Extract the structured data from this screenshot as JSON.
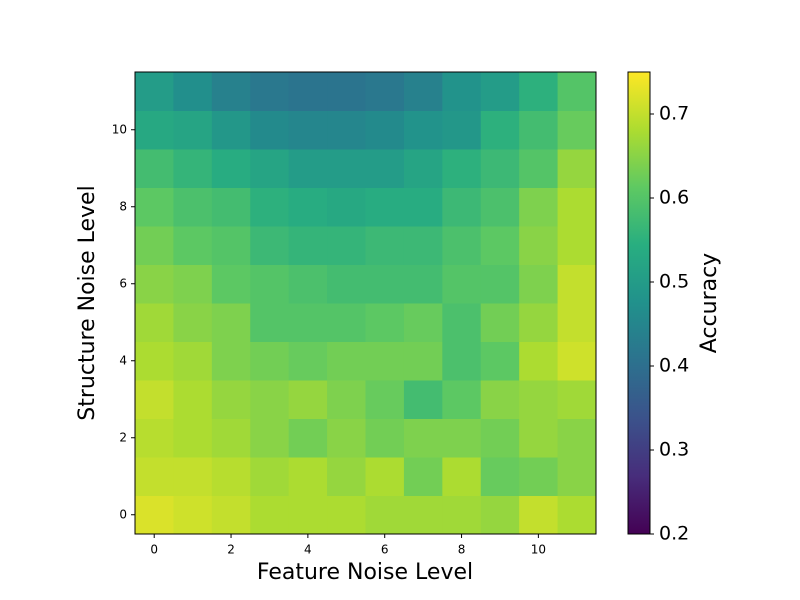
{
  "chart_data": {
    "type": "heatmap",
    "xlabel": "Feature Noise Level",
    "ylabel": "Structure Noise Level",
    "xlim": [
      -0.5,
      11.5
    ],
    "ylim": [
      -0.5,
      11.5
    ],
    "xticks": [
      0,
      2,
      4,
      6,
      8,
      10
    ],
    "yticks": [
      0,
      2,
      4,
      6,
      8,
      10
    ],
    "colormap": "viridis",
    "colorbar": {
      "label": "Accuracy",
      "lim": [
        0.2,
        0.75
      ],
      "ticks": [
        0.2,
        0.3,
        0.4,
        0.5,
        0.6,
        0.7
      ]
    },
    "z": [
      [
        0.72,
        0.71,
        0.7,
        0.68,
        0.68,
        0.68,
        0.67,
        0.67,
        0.67,
        0.66,
        0.7,
        0.68
      ],
      [
        0.7,
        0.7,
        0.69,
        0.67,
        0.68,
        0.66,
        0.68,
        0.63,
        0.68,
        0.62,
        0.63,
        0.65
      ],
      [
        0.69,
        0.68,
        0.67,
        0.65,
        0.63,
        0.65,
        0.63,
        0.64,
        0.64,
        0.63,
        0.66,
        0.65
      ],
      [
        0.7,
        0.68,
        0.66,
        0.65,
        0.66,
        0.64,
        0.62,
        0.58,
        0.61,
        0.65,
        0.66,
        0.67
      ],
      [
        0.68,
        0.67,
        0.64,
        0.63,
        0.62,
        0.63,
        0.63,
        0.63,
        0.59,
        0.61,
        0.68,
        0.71
      ],
      [
        0.67,
        0.65,
        0.64,
        0.6,
        0.6,
        0.6,
        0.61,
        0.62,
        0.59,
        0.63,
        0.66,
        0.7
      ],
      [
        0.65,
        0.64,
        0.61,
        0.6,
        0.59,
        0.58,
        0.58,
        0.58,
        0.6,
        0.6,
        0.64,
        0.7
      ],
      [
        0.63,
        0.61,
        0.6,
        0.57,
        0.56,
        0.56,
        0.57,
        0.57,
        0.59,
        0.61,
        0.65,
        0.68
      ],
      [
        0.61,
        0.59,
        0.58,
        0.55,
        0.54,
        0.53,
        0.54,
        0.54,
        0.57,
        0.59,
        0.64,
        0.68
      ],
      [
        0.58,
        0.56,
        0.54,
        0.52,
        0.5,
        0.5,
        0.5,
        0.52,
        0.55,
        0.57,
        0.6,
        0.66
      ],
      [
        0.53,
        0.52,
        0.49,
        0.46,
        0.45,
        0.45,
        0.46,
        0.48,
        0.49,
        0.55,
        0.58,
        0.62
      ],
      [
        0.5,
        0.47,
        0.44,
        0.42,
        0.41,
        0.41,
        0.42,
        0.44,
        0.48,
        0.5,
        0.55,
        0.6
      ]
    ]
  }
}
